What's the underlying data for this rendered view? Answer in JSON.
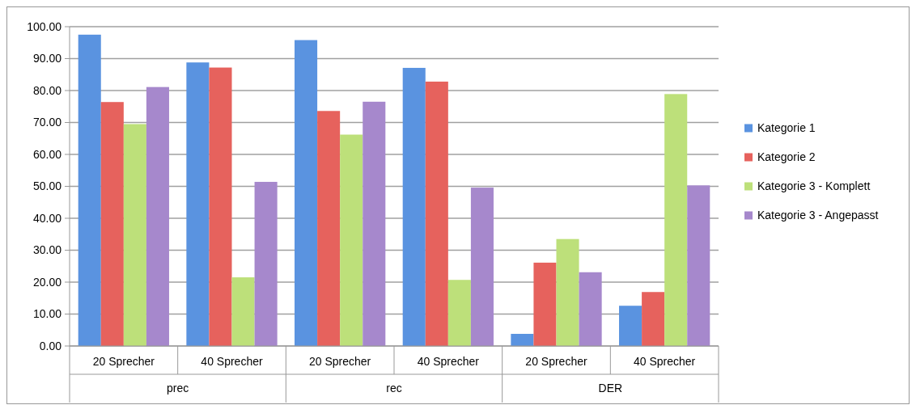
{
  "chart_data": {
    "type": "bar",
    "categories": [
      "20 Sprecher",
      "40 Sprecher",
      "20 Sprecher",
      "40 Sprecher",
      "20 Sprecher",
      "40 Sprecher"
    ],
    "annotations": [
      "prec",
      "rec",
      "DER"
    ],
    "series": [
      {
        "name": "Kategorie 1",
        "color": "#5a93e0",
        "values": [
          97.5,
          88.8,
          95.8,
          87.1,
          3.8,
          12.6
        ]
      },
      {
        "name": "Kategorie 2",
        "color": "#e6625d",
        "values": [
          76.4,
          87.2,
          73.6,
          82.8,
          26.1,
          16.9
        ]
      },
      {
        "name": "Kategorie 3 - Komplett",
        "color": "#bde07a",
        "values": [
          69.5,
          21.5,
          66.2,
          20.7,
          33.5,
          78.9
        ]
      },
      {
        "name": "Kategorie 3 - Angepasst",
        "color": "#a688cc",
        "values": [
          81.1,
          51.4,
          76.5,
          49.6,
          23.1,
          50.3
        ]
      }
    ],
    "ylim": [
      0,
      100
    ],
    "yticks": [
      {
        "value": 0,
        "label": "0.00"
      },
      {
        "value": 10,
        "label": "10.00"
      },
      {
        "value": 20,
        "label": "20.00"
      },
      {
        "value": 30,
        "label": "30.00"
      },
      {
        "value": 40,
        "label": "40.00"
      },
      {
        "value": 50,
        "label": "50.00"
      },
      {
        "value": 60,
        "label": "60.00"
      },
      {
        "value": 70,
        "label": "70.00"
      },
      {
        "value": 80,
        "label": "80.00"
      },
      {
        "value": 90,
        "label": "90.00"
      },
      {
        "value": 100,
        "label": "100.00"
      }
    ],
    "grid": true,
    "legend": "right"
  }
}
